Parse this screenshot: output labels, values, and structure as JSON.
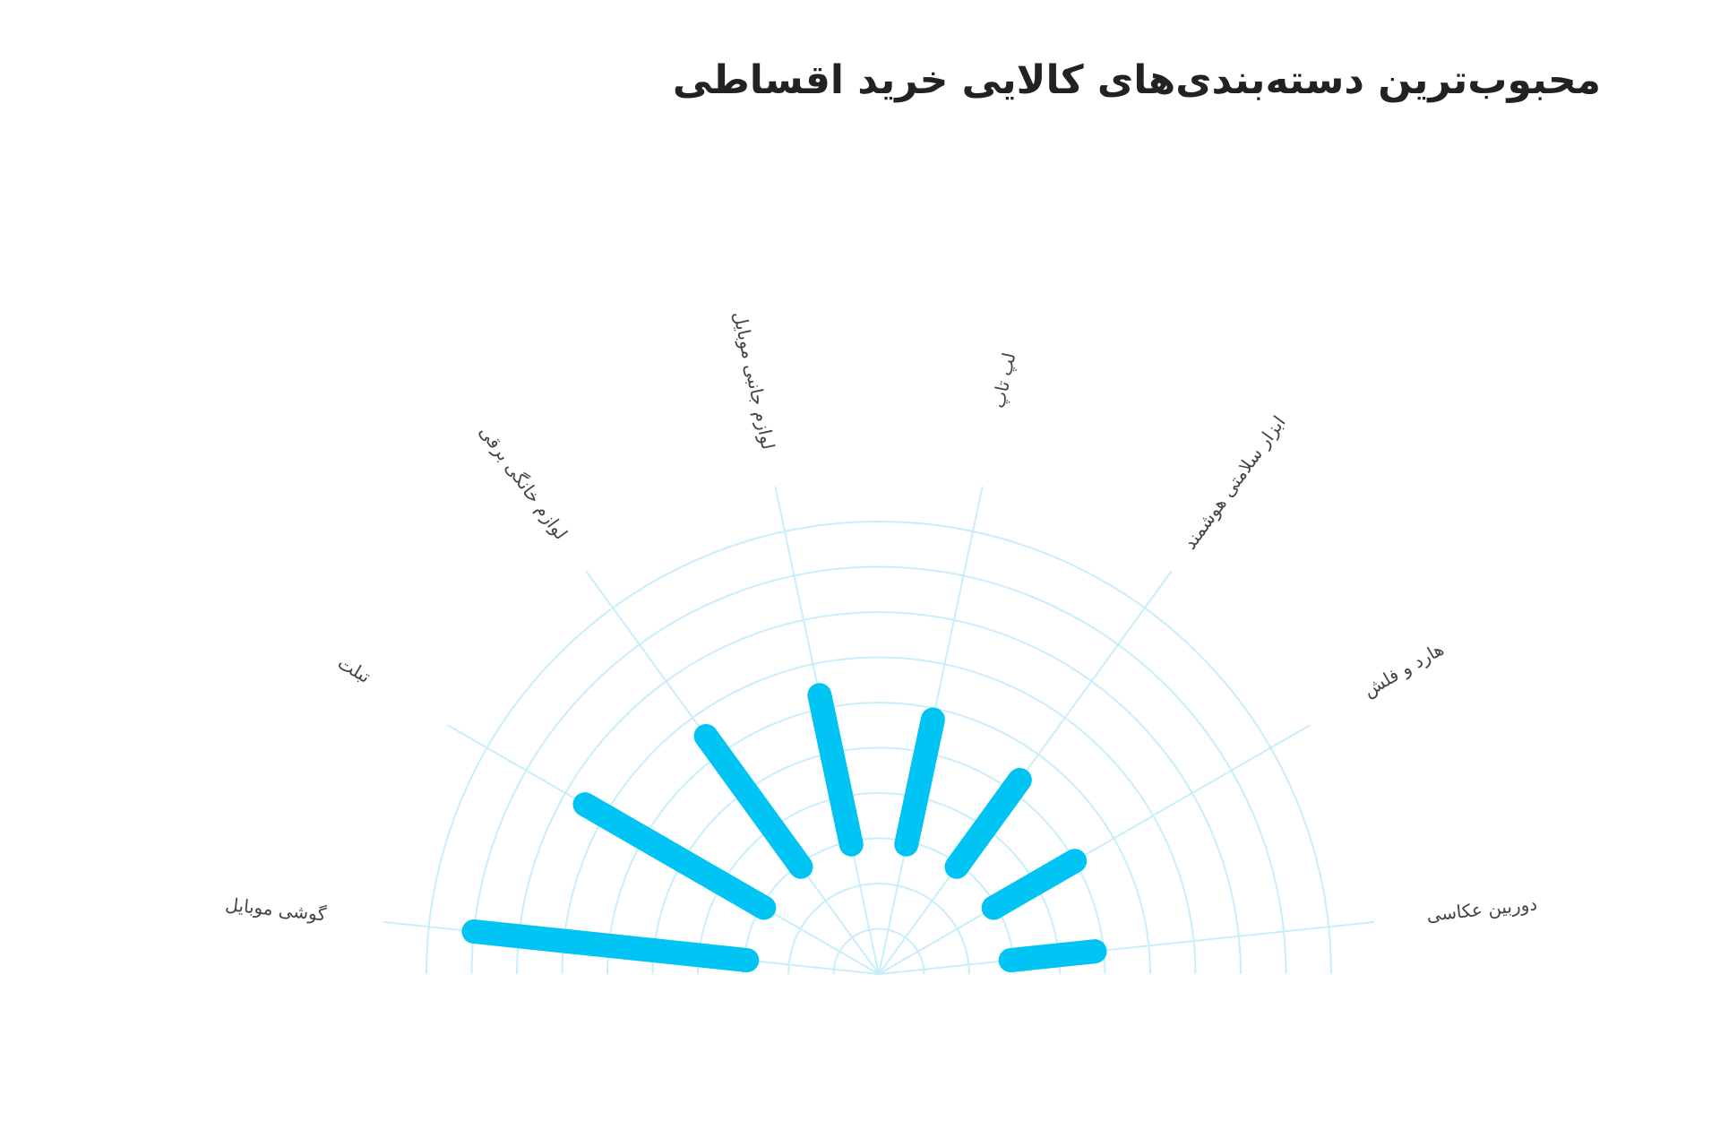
{
  "chart_data": {
    "type": "radial-bar",
    "title": "محبوب‌ترین دسته‌بندی‌های کالایی خرید اقساطی",
    "categories": [
      "گوشی موبایل",
      "تبلت",
      "لوازم خانگی برقی",
      "لوازم جانبی موبایل",
      "لپ تاپ",
      "ابزار سلامتی هوشمند",
      "هارد و فلش",
      "دوربین عکاسی"
    ],
    "values": [
      9.0,
      7.5,
      6.5,
      6.3,
      5.75,
      5.3,
      5.0,
      4.8
    ],
    "color": "#00c4f4",
    "ylim": [
      0,
      10
    ],
    "yticks": [
      1,
      2,
      3,
      4,
      5,
      6,
      7,
      8,
      9,
      10
    ],
    "grid": true
  }
}
